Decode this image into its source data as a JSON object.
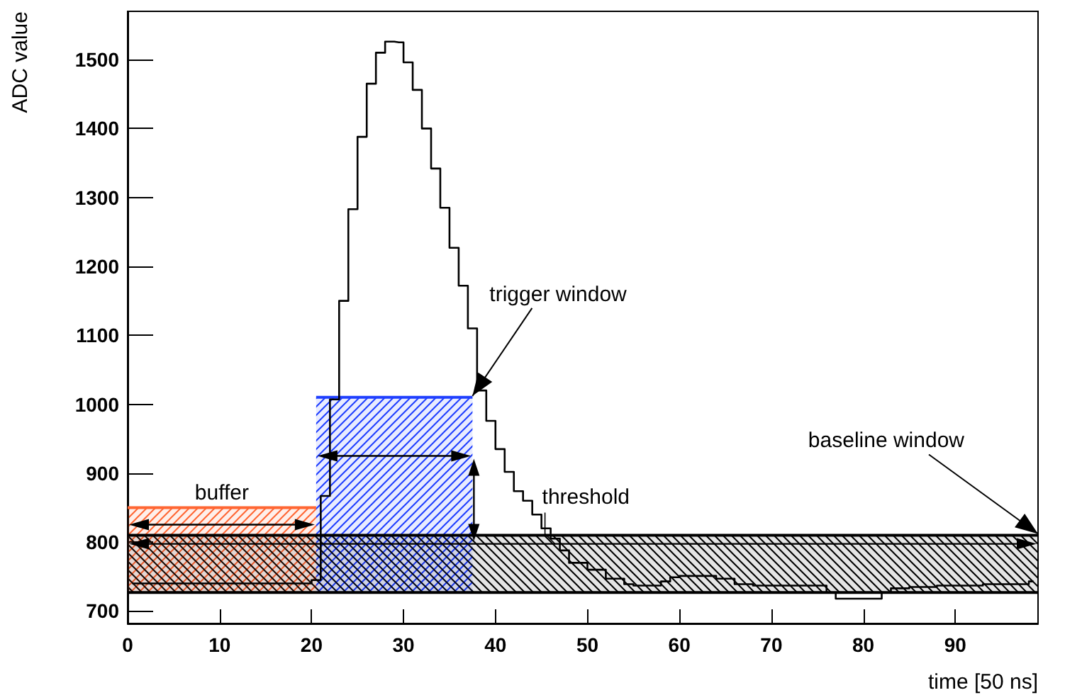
{
  "chart_data": {
    "type": "step",
    "xlabel": "time [50 ns]",
    "ylabel": "ADC value",
    "xlim": [
      0,
      99
    ],
    "xticks": [
      0,
      10,
      20,
      30,
      40,
      50,
      60,
      70,
      80,
      90
    ],
    "ylim": [
      682,
      1570
    ],
    "yticks": [
      700,
      800,
      900,
      1000,
      1100,
      1200,
      1300,
      1400,
      1500
    ],
    "series": [
      {
        "color": "#000000",
        "x": [
          0.5,
          1.5,
          2.5,
          3.5,
          4.5,
          5.5,
          6.5,
          7.5,
          8.5,
          9.5,
          10.5,
          11.5,
          12.5,
          13.5,
          14.5,
          15.5,
          16.5,
          17.5,
          18.5,
          19.5,
          20.5,
          21.5,
          22.5,
          23.5,
          24.5,
          25.5,
          26.5,
          27.5,
          28.5,
          29.5,
          30.5,
          31.5,
          32.5,
          33.5,
          34.5,
          35.5,
          36.5,
          37.5,
          38.5,
          39.5,
          40.5,
          41.5,
          42.5,
          43.5,
          44.5,
          45.5,
          46.5,
          47.5,
          48.5,
          49.5,
          50.5,
          51.5,
          52.5,
          53.5,
          54.5,
          55.5,
          56.5,
          57.5,
          58.5,
          59.5,
          60.5,
          61.5,
          62.5,
          63.5,
          64.5,
          65.5,
          66.5,
          67.5,
          68.5,
          69.5,
          70.5,
          71.5,
          72.5,
          73.5,
          74.5,
          75.5,
          76.5,
          77.5,
          78.5,
          79.5,
          80.5,
          81.5,
          82.5,
          83.5,
          84.5,
          85.5,
          86.5,
          87.5,
          88.5,
          89.5,
          90.5,
          91.5,
          92.5,
          93.5,
          94.5,
          95.5,
          96.5,
          97.5,
          98.5
        ],
        "values": [
          740,
          740,
          740,
          740,
          740,
          740,
          740,
          740,
          740,
          740,
          740,
          740,
          740,
          740,
          740,
          740,
          740,
          740,
          740,
          740,
          745,
          867,
          1007,
          1150,
          1283,
          1388,
          1465,
          1510,
          1526,
          1525,
          1496,
          1456,
          1400,
          1342,
          1285,
          1227,
          1172,
          1110,
          1020,
          976,
          935,
          902,
          874,
          860,
          840,
          820,
          805,
          788,
          770,
          770,
          760,
          760,
          747,
          747,
          739,
          737,
          737,
          737,
          743,
          749,
          751,
          751,
          751,
          751,
          747,
          747,
          739,
          739,
          737,
          737,
          737,
          737,
          737,
          737,
          737,
          737,
          727,
          718,
          718,
          718,
          718,
          718,
          727,
          733,
          733,
          735,
          735,
          735,
          737,
          737,
          737,
          737,
          737,
          739,
          739,
          739,
          739,
          739,
          743
        ]
      },
      {
        "type": "area",
        "color": "#ff6633",
        "x": [
          0,
          20.5
        ],
        "values": [
          850,
          850
        ]
      },
      {
        "type": "area",
        "color": "#1f3fff",
        "x": [
          20.5,
          37.5
        ],
        "values": [
          1010,
          1010
        ]
      },
      {
        "type": "area",
        "color": "#000000",
        "x": [
          0,
          99
        ],
        "values": [
          810,
          810
        ]
      },
      {
        "type": "line",
        "color": "#000000",
        "x": [
          0,
          99
        ],
        "values": [
          727,
          727
        ]
      }
    ],
    "annotations": [
      "buffer",
      {
        "text": "trigger window",
        "x": 37.5,
        "y": 1010
      },
      {
        "text": "threshold",
        "x": 46,
        "y": 810
      },
      {
        "text": "baseline window",
        "x": 99,
        "y": 810
      }
    ]
  }
}
